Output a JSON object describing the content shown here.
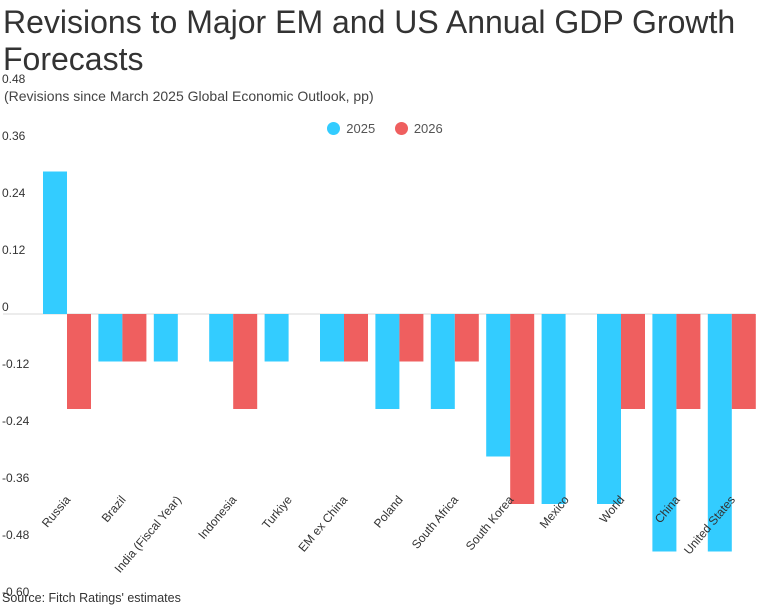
{
  "chart_data": {
    "type": "bar",
    "title": "Revisions to Major EM and US Annual GDP Growth Forecasts",
    "subtitle": "(Revisions since March 2025 Global Economic Outlook, pp)",
    "source": "Source: Fitch Ratings' estimates",
    "categories": [
      "Russia",
      "Brazil",
      "India (Fiscal Year)",
      "Indonesia",
      "Turkiye",
      "EM ex China",
      "Poland",
      "South Africa",
      "South Korea",
      "Mexico",
      "World",
      "China",
      "United States"
    ],
    "series": [
      {
        "name": "2025",
        "color": "#33ccff",
        "values": [
          0.3,
          -0.1,
          -0.1,
          -0.1,
          -0.1,
          -0.1,
          -0.2,
          -0.2,
          -0.3,
          -0.4,
          -0.4,
          -0.5,
          -0.5
        ]
      },
      {
        "name": "2026",
        "color": "#ef5f5f",
        "values": [
          -0.2,
          -0.1,
          0,
          -0.2,
          0,
          -0.1,
          -0.1,
          -0.1,
          -0.4,
          0,
          -0.2,
          -0.2,
          -0.2
        ]
      }
    ],
    "yticks": [
      "0.48",
      "0.36",
      "0.24",
      "0.12",
      "0",
      "-0.12",
      "-0.24",
      "-0.36",
      "-0.48",
      "-0.60"
    ],
    "ylim": [
      -0.6,
      0.48
    ],
    "legend_position": "top-center",
    "grid": false
  }
}
